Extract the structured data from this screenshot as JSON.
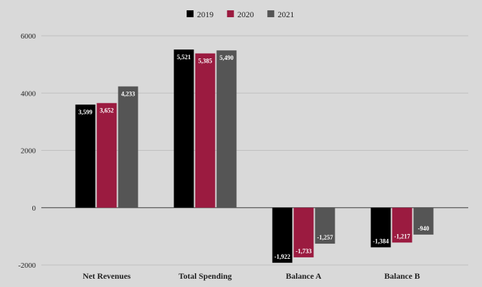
{
  "chart_data": {
    "type": "bar",
    "title": "",
    "xlabel": "",
    "ylabel": "",
    "categories": [
      "Net Revenues",
      "Total Spending",
      "Balance A",
      "Balance B"
    ],
    "series": [
      {
        "name": "2019",
        "color": "#000000",
        "values": [
          3599,
          5521,
          -1922,
          -1384
        ],
        "labels": [
          "3,599",
          "5,521",
          "-1,922",
          "-1,384"
        ]
      },
      {
        "name": "2020",
        "color": "#9b1b40",
        "values": [
          3652,
          5385,
          -1733,
          -1217
        ],
        "labels": [
          "3,652",
          "5,385",
          "-1,733",
          "-1,217"
        ]
      },
      {
        "name": "2021",
        "color": "#555555",
        "values": [
          4233,
          5490,
          -1257,
          -940
        ],
        "labels": [
          "4,233",
          "5,490",
          "-1,257",
          "-940"
        ]
      }
    ],
    "yticks": [
      -2000,
      0,
      2000,
      4000,
      6000
    ],
    "ytick_labels": [
      "-2000",
      "0",
      "2000",
      "4000",
      "6000"
    ],
    "ylim": [
      -2000,
      6000
    ],
    "grid": true,
    "legend_position": "top-center",
    "gridline_color": "#bfbfbf",
    "axis_color": "#555555"
  }
}
